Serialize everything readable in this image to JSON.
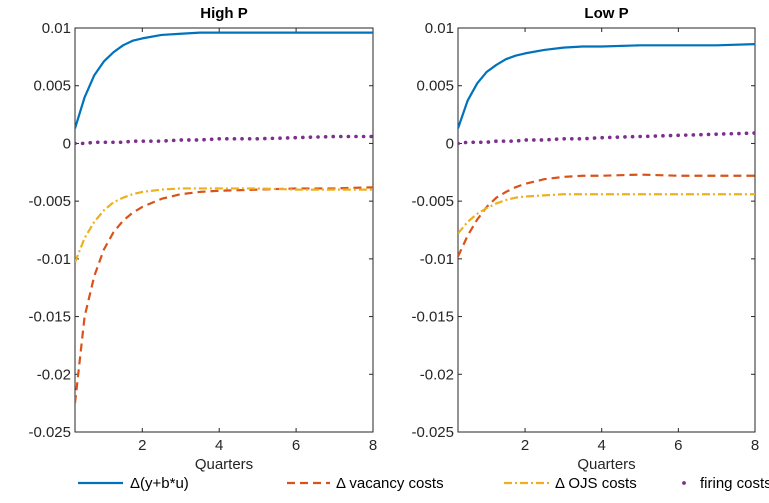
{
  "chart_data": [
    {
      "type": "line",
      "title": "High P",
      "xlabel": "Quarters",
      "ylabel": "",
      "xlim": [
        0.25,
        8
      ],
      "ylim": [
        -0.025,
        0.01
      ],
      "xticks": [
        2,
        4,
        6,
        8
      ],
      "yticks": [
        0.01,
        0.005,
        0,
        -0.005,
        -0.01,
        -0.015,
        -0.02,
        -0.025
      ],
      "ytick_labels": [
        "0.01",
        "0.005",
        "0",
        "-0.005",
        "-0.01",
        "-0.015",
        "-0.02",
        "-0.025"
      ],
      "grid": false,
      "x": [
        0.25,
        0.5,
        0.75,
        1,
        1.25,
        1.5,
        1.75,
        2,
        2.5,
        3,
        3.5,
        4,
        5,
        6,
        7,
        8
      ],
      "series": [
        {
          "name": "Δ(y+b*u)",
          "color": "#0072BD",
          "style": "solid",
          "values": [
            0.0013,
            0.004,
            0.0059,
            0.0071,
            0.0079,
            0.0085,
            0.0089,
            0.0091,
            0.0094,
            0.0095,
            0.0096,
            0.0096,
            0.0096,
            0.0096,
            0.0096,
            0.0096
          ]
        },
        {
          "name": "Δ vacancy costs",
          "color": "#D95319",
          "style": "dashed",
          "values": [
            -0.0225,
            -0.015,
            -0.0115,
            -0.0092,
            -0.0077,
            -0.0067,
            -0.006,
            -0.0055,
            -0.0048,
            -0.0044,
            -0.0042,
            -0.0041,
            -0.004,
            -0.0039,
            -0.0039,
            -0.0038
          ]
        },
        {
          "name": "Δ OJS costs",
          "color": "#EDB120",
          "style": "dashdot",
          "values": [
            -0.0103,
            -0.0082,
            -0.0068,
            -0.0058,
            -0.0051,
            -0.0047,
            -0.0044,
            -0.0042,
            -0.004,
            -0.0039,
            -0.0039,
            -0.0039,
            -0.0039,
            -0.004,
            -0.004,
            -0.004
          ]
        },
        {
          "name": "firing costs",
          "color": "#7E2F8E",
          "style": "dotted",
          "values": [
            0.0,
            0.0,
            0.0001,
            0.0001,
            0.0001,
            0.0001,
            0.0002,
            0.0002,
            0.0002,
            0.0003,
            0.0003,
            0.0004,
            0.0004,
            0.0005,
            0.0006,
            0.0006
          ]
        }
      ]
    },
    {
      "type": "line",
      "title": "Low P",
      "xlabel": "Quarters",
      "ylabel": "",
      "xlim": [
        0.25,
        8
      ],
      "ylim": [
        -0.025,
        0.01
      ],
      "xticks": [
        2,
        4,
        6,
        8
      ],
      "yticks": [
        0.01,
        0.005,
        0,
        -0.005,
        -0.01,
        -0.015,
        -0.02,
        -0.025
      ],
      "ytick_labels": [
        "0.01",
        "0.005",
        "0",
        "-0.005",
        "-0.01",
        "-0.015",
        "-0.02",
        "-0.025"
      ],
      "grid": false,
      "x": [
        0.25,
        0.5,
        0.75,
        1,
        1.25,
        1.5,
        1.75,
        2,
        2.5,
        3,
        3.5,
        4,
        5,
        6,
        7,
        8
      ],
      "series": [
        {
          "name": "Δ(y+b*u)",
          "color": "#0072BD",
          "style": "solid",
          "values": [
            0.0013,
            0.0037,
            0.0052,
            0.0062,
            0.0068,
            0.0073,
            0.0076,
            0.0078,
            0.0081,
            0.0083,
            0.0084,
            0.0084,
            0.0085,
            0.0085,
            0.0085,
            0.0086
          ]
        },
        {
          "name": "Δ vacancy costs",
          "color": "#D95319",
          "style": "dashed",
          "values": [
            -0.0098,
            -0.008,
            -0.0066,
            -0.0055,
            -0.0047,
            -0.0042,
            -0.0038,
            -0.0035,
            -0.0031,
            -0.0029,
            -0.0028,
            -0.0028,
            -0.0027,
            -0.0028,
            -0.0028,
            -0.0028
          ]
        },
        {
          "name": "Δ OJS costs",
          "color": "#EDB120",
          "style": "dashdot",
          "values": [
            -0.0078,
            -0.0068,
            -0.0061,
            -0.0056,
            -0.0052,
            -0.0049,
            -0.0047,
            -0.0046,
            -0.0045,
            -0.0044,
            -0.0044,
            -0.0044,
            -0.0044,
            -0.0044,
            -0.0044,
            -0.0044
          ]
        },
        {
          "name": "firing costs",
          "color": "#7E2F8E",
          "style": "dotted",
          "values": [
            0.0,
            0.0001,
            0.0001,
            0.0001,
            0.0002,
            0.0002,
            0.0002,
            0.0003,
            0.0003,
            0.0004,
            0.0004,
            0.0005,
            0.0006,
            0.0007,
            0.0008,
            0.0009
          ]
        }
      ]
    }
  ],
  "legend": {
    "placement": "bottom",
    "entries": [
      {
        "label": "Δ(y+b*u)",
        "color": "#0072BD",
        "style": "solid"
      },
      {
        "label": "Δ vacancy costs",
        "color": "#D95319",
        "style": "dashed"
      },
      {
        "label": "Δ OJS costs",
        "color": "#EDB120",
        "style": "dashdot"
      },
      {
        "label": "firing costs",
        "color": "#7E2F8E",
        "style": "dotted"
      }
    ]
  }
}
